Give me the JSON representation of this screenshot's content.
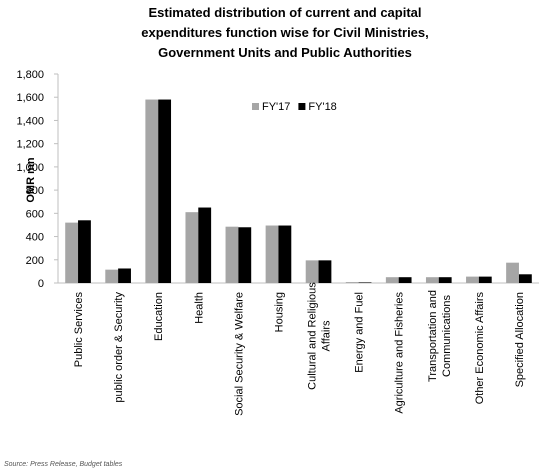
{
  "chart_data": {
    "type": "bar",
    "title": "Estimated distribution of current and capital expenditures function wise for Civil Ministries, Government Units and Public Authorities",
    "y_label": "OMR mn",
    "source": "Source: Press Release, Budget tables",
    "categories": [
      "Public Services",
      "public order & Security",
      "Education",
      "Health",
      "Social Security & Welfare",
      "Housing",
      "Cultural and Religious Affairs",
      "Energy and Fuel",
      "Agriculture and Fisheries",
      "Transportation and Communications",
      "Other Economic Affairs",
      "Specified Allocation"
    ],
    "series": [
      {
        "name": "FY'17",
        "color": "#a6a6a6",
        "values": [
          520,
          115,
          1580,
          610,
          485,
          495,
          195,
          8,
          50,
          50,
          55,
          175
        ]
      },
      {
        "name": "FY'18",
        "color": "#000000",
        "values": [
          540,
          125,
          1580,
          650,
          480,
          495,
          195,
          5,
          50,
          50,
          55,
          75
        ]
      }
    ],
    "ylim": [
      0,
      1800
    ],
    "yticks": [
      0,
      200,
      400,
      600,
      800,
      {
        "value": 1000,
        "label": "1,000"
      },
      {
        "value": 1200,
        "label": "1,200"
      },
      {
        "value": 1400,
        "label": "1,400"
      },
      {
        "value": 1600,
        "label": "1,600"
      },
      {
        "value": 1800,
        "label": "1,800"
      }
    ],
    "legend": "top"
  }
}
